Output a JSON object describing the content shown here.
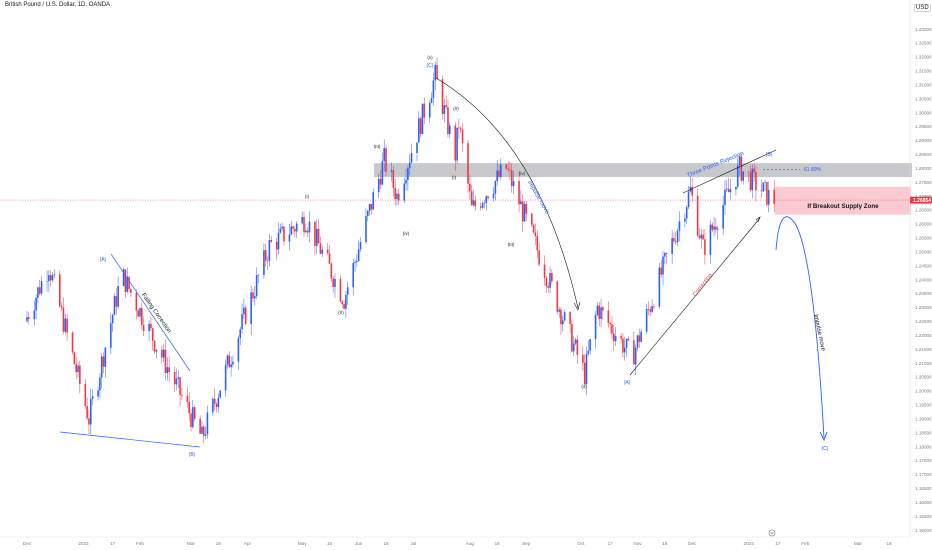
{
  "header": {
    "symbol_title": "British Pound / U.S. Dollar, 1D, OANDA",
    "currency_button": "USD"
  },
  "chart_data": {
    "type": "candlestick",
    "y_axis": {
      "ticks": [
        "1.33000",
        "1.32500",
        "1.32000",
        "1.31500",
        "1.31000",
        "1.30500",
        "1.30000",
        "1.29500",
        "1.29000",
        "1.28500",
        "1.28000",
        "1.27500",
        "1.27000",
        "1.26500",
        "1.26000",
        "1.25500",
        "1.25000",
        "1.24500",
        "1.24000",
        "1.23500",
        "1.23000",
        "1.22500",
        "1.22000",
        "1.21500",
        "1.21000",
        "1.20500",
        "1.20000",
        "1.19500",
        "1.19000",
        "1.18500",
        "1.18000",
        "1.17500",
        "1.17000",
        "1.16500",
        "1.16000",
        "1.15500",
        "1.15000"
      ],
      "range": [
        1.1475,
        1.3325
      ],
      "current_price": "1.26854"
    },
    "x_axis": {
      "ticks": [
        "Dec",
        "2023",
        "17",
        "Feb",
        "Mar",
        "16",
        "Apr",
        "May",
        "16",
        "Jun",
        "16",
        "Jul",
        "Aug",
        "16",
        "Sep",
        "Oct",
        "17",
        "Nov",
        "16",
        "Dec",
        "2024",
        "17",
        "Feb",
        "Mar",
        "18"
      ]
    },
    "price_path": [
      {
        "date": "2022-12-01",
        "price": 1.225
      },
      {
        "date": "2022-12-14",
        "price": 1.245
      },
      {
        "date": "2023-01-05",
        "price": 1.19
      },
      {
        "date": "2023-01-23",
        "price": 1.242
      },
      {
        "date": "2023-03-08",
        "price": 1.183
      },
      {
        "date": "2023-04-14",
        "price": 1.252
      },
      {
        "date": "2023-05-04",
        "price": 1.262
      },
      {
        "date": "2023-05-25",
        "price": 1.233
      },
      {
        "date": "2023-06-16",
        "price": 1.283
      },
      {
        "date": "2023-06-23",
        "price": 1.27
      },
      {
        "date": "2023-07-14",
        "price": 1.313
      },
      {
        "date": "2023-07-25",
        "price": 1.285
      },
      {
        "date": "2023-07-27",
        "price": 1.296
      },
      {
        "date": "2023-08-03",
        "price": 1.265
      },
      {
        "date": "2023-08-22",
        "price": 1.28
      },
      {
        "date": "2023-10-04",
        "price": 1.206
      },
      {
        "date": "2023-10-11",
        "price": 1.23
      },
      {
        "date": "2023-10-30",
        "price": 1.212
      },
      {
        "date": "2023-12-01",
        "price": 1.272
      },
      {
        "date": "2023-12-08",
        "price": 1.251
      },
      {
        "date": "2023-12-28",
        "price": 1.28
      },
      {
        "date": "2024-01-15",
        "price": 1.2685
      }
    ],
    "levels": {
      "fib_label": "61.80%",
      "fib_price": 1.2796,
      "supply_zone_top": 1.2733,
      "supply_zone_bottom": 1.2633,
      "resistance_top": 1.2818,
      "resistance_bottom": 1.2768
    },
    "annotations": {
      "wave_a_left": "(A)",
      "wave_b_left": "(B)",
      "falling_correction": "Falling Correction",
      "wave_i": "(I)",
      "wave_ii": "(II)",
      "wave_iii": "(III)",
      "wave_iv": "(IV)",
      "wave_v_small": "(v)",
      "wave_c": "(C)",
      "sub_ii": "(II)",
      "sub_i": "(I)",
      "sub_iii": "(III)",
      "sub_iv": "(iv)",
      "sub_v": "(v)",
      "sub_iv2": "(iv)",
      "impulse_move_1": "Impulse move",
      "wave_v_bottom": "(v)",
      "wave_a_right": "(A)",
      "correction": "Correction",
      "three_points": "Three Points Rejection",
      "wave_b_right": "(B)",
      "supply_zone_label": "If Breakout Supply Zone",
      "impulse_move_2": "Impulse move",
      "wave_c_right": "(C)"
    },
    "colors": {
      "up": "#2962ff",
      "down": "#f23645",
      "annotation_blue": "#2962ff",
      "annotation_red": "#f23645"
    }
  }
}
